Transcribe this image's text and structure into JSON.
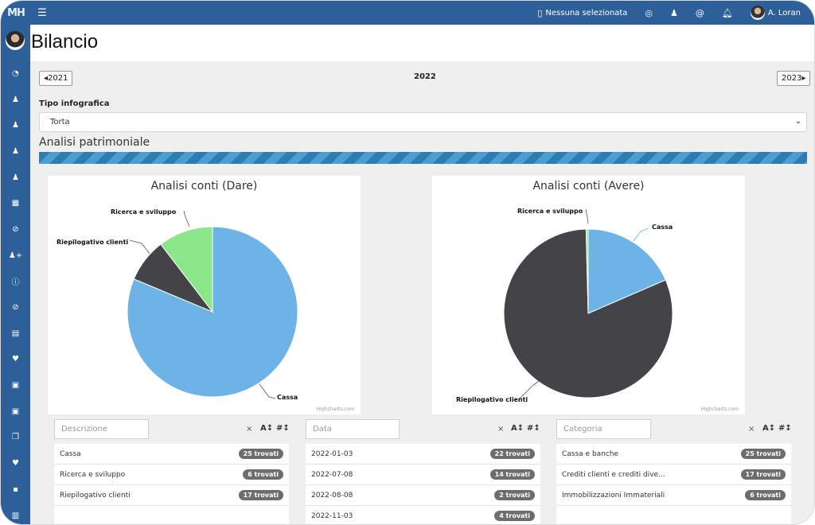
{
  "topbar": {
    "logo": "MH",
    "selection_label": "Nessuna selezionata",
    "user_name": "A. Loran"
  },
  "page": {
    "title": "Bilancio"
  },
  "year_nav": {
    "prev": "2021",
    "current": "2022",
    "next": "2023"
  },
  "tipo": {
    "label": "Tipo infografica",
    "selected": "Torta"
  },
  "section": {
    "title": "Analisi patrimoniale",
    "progress": 1.0
  },
  "charts": [
    {
      "title": "Analisi conti (Dare)",
      "credit": "Highcharts.com",
      "labels": [
        "Cassa",
        "Ricerca e sviluppo",
        "Riepilogativo clienti"
      ]
    },
    {
      "title": "Analisi conti (Avere)",
      "credit": "Highcharts.com",
      "labels": [
        "Cassa",
        "Ricerca e sviluppo",
        "Riepilogativo clienti"
      ]
    }
  ],
  "chart_data": [
    {
      "type": "pie",
      "title": "Analisi conti (Dare)",
      "categories": [
        "Cassa",
        "Riepilogativo clienti",
        "Ricerca e sviluppo"
      ],
      "values": [
        81.3,
        8.3,
        10.4
      ],
      "colors": [
        "#6db3e6",
        "#434348",
        "#8be68a"
      ]
    },
    {
      "type": "pie",
      "title": "Analisi conti (Avere)",
      "categories": [
        "Cassa",
        "Riepilogativo clienti",
        "Ricerca e sviluppo"
      ],
      "values": [
        18.5,
        81.1,
        0.4
      ],
      "colors": [
        "#6db3e6",
        "#434348",
        "#8be68a"
      ]
    }
  ],
  "filters": [
    {
      "placeholder": "Descrizione",
      "clear": "×",
      "sort_alpha": "A↕",
      "sort_num": "#↕"
    },
    {
      "placeholder": "Data",
      "clear": "×",
      "sort_alpha": "A↕",
      "sort_num": "#↕"
    },
    {
      "placeholder": "Categoria",
      "clear": "×",
      "sort_alpha": "A↕",
      "sort_num": "#↕"
    }
  ],
  "lists": [
    [
      {
        "label": "Cassa",
        "count": "25 trovati"
      },
      {
        "label": "Ricerca e sviluppo",
        "count": "6 trovati"
      },
      {
        "label": "Riepilogativo clienti",
        "count": "17 trovati"
      }
    ],
    [
      {
        "label": "2022-01-03",
        "count": "22 trovati"
      },
      {
        "label": "2022-07-08",
        "count": "14 trovati"
      },
      {
        "label": "2022-08-08",
        "count": "2 trovati"
      },
      {
        "label": "2022-11-03",
        "count": "4 trovati"
      }
    ],
    [
      {
        "label": "Cassa e banche",
        "count": "25 trovati"
      },
      {
        "label": "Crediti clienti e crediti dive...",
        "count": "17 trovati"
      },
      {
        "label": "Immobilizzazioni Immateriali",
        "count": "6 trovati"
      }
    ]
  ],
  "icons": {
    "sidebar": [
      "dashboard-icon",
      "user-icon",
      "user-icon",
      "user-icon",
      "user-icon",
      "calendar-icon",
      "check-circle-icon",
      "user-plus-icon",
      "info-icon",
      "check-circle-icon",
      "file-icon",
      "heartbeat-icon",
      "briefcase-medical-icon",
      "briefcase-medical-icon",
      "copy-icon",
      "heartbeat-icon",
      "briefcase-icon",
      "building-icon"
    ]
  }
}
